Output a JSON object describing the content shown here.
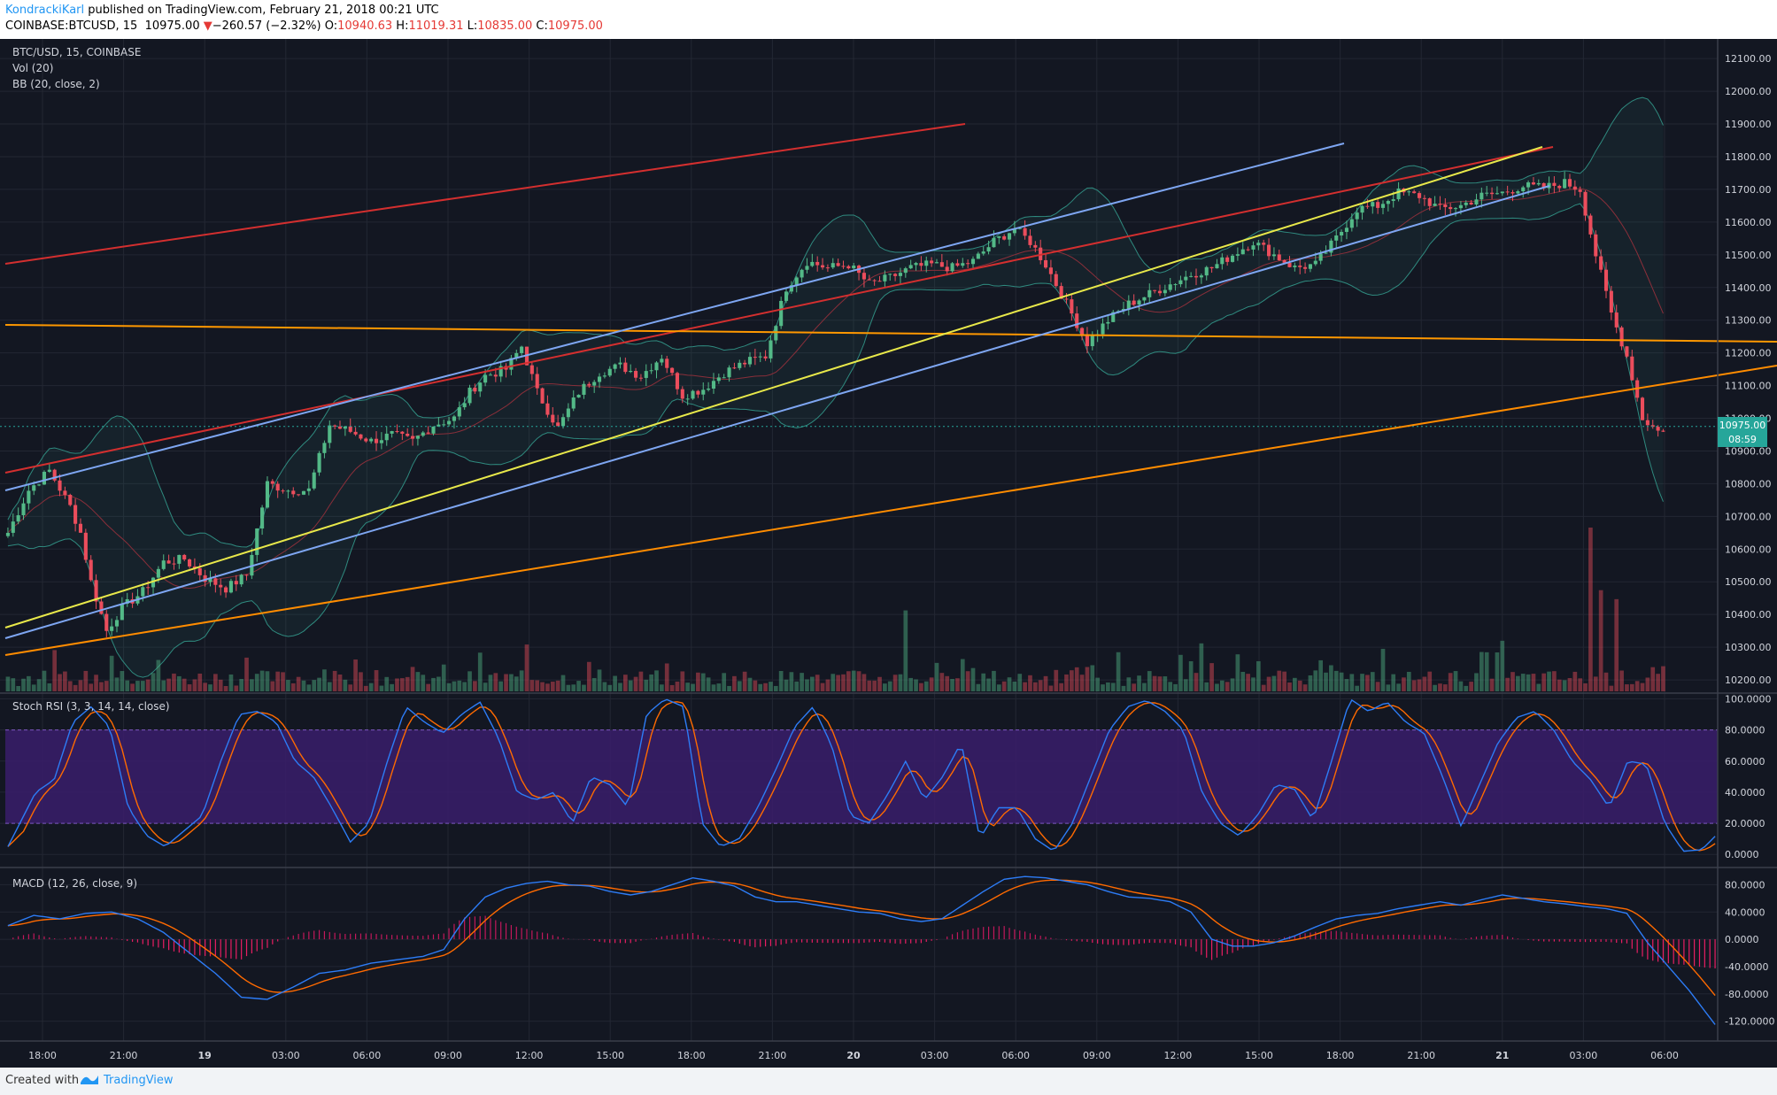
{
  "header": {
    "author": "KondrackiKarl",
    "published": " published on TradingView.com, February 21, 2018 00:21 UTC",
    "symbol": "COINBASE:BTCUSD, 15",
    "last": "10975.00",
    "arrow": "▼",
    "change": "−260.57 (−2.32%)",
    "o_label": "O:",
    "o": "10940.63",
    "h_label": "H:",
    "h": "11019.31",
    "l_label": "L:",
    "l": "10835.00",
    "c_label": "C:",
    "c": "10975.00"
  },
  "legend": {
    "symbol": "BTC/USD, 15, COINBASE",
    "vol": "Vol (20)",
    "bb": "BB (20, close, 2)",
    "stoch": "Stoch RSI (3, 3, 14, 14, close)",
    "macd": "MACD (12, 26, close, 9)"
  },
  "price_badge": {
    "value": "10975.00",
    "timer": "08:59"
  },
  "footer": {
    "created": "Created with",
    "brand": "TradingView"
  },
  "colors": {
    "background": "#131722",
    "grid": "#232733",
    "up": "#53b987",
    "down": "#eb4d5c",
    "bb": "#2f8a7f",
    "stoch_k": "#2d7cf6",
    "stoch_d": "#ff6a00",
    "macd": "#2d7cf6",
    "signal": "#ff6a00",
    "stoch_band": "#3a1d6b"
  },
  "chart_data": {
    "type": "candlestick",
    "x_ticks": [
      "18:00",
      "21:00",
      "19",
      "03:00",
      "06:00",
      "09:00",
      "12:00",
      "15:00",
      "18:00",
      "21:00",
      "20",
      "03:00",
      "06:00",
      "09:00",
      "12:00",
      "15:00",
      "18:00",
      "21:00",
      "21",
      "03:00",
      "06:00"
    ],
    "price_ticks": [
      "12100.00",
      "12000.00",
      "11900.00",
      "11800.00",
      "11700.00",
      "11600.00",
      "11500.00",
      "11400.00",
      "11300.00",
      "11200.00",
      "11100.00",
      "11000.00",
      "10900.00",
      "10800.00",
      "10700.00",
      "10600.00",
      "10500.00",
      "10400.00",
      "10300.00",
      "10200.00"
    ],
    "price_range": [
      10165,
      12160
    ],
    "stoch_ticks": [
      "100.0000",
      "80.0000",
      "60.0000",
      "40.0000",
      "20.0000",
      "0.0000"
    ],
    "stoch_range": [
      -5,
      102
    ],
    "macd_ticks": [
      "80.0000",
      "40.0000",
      "0.0000",
      "-40.0000",
      "-80.0000",
      "-120.0000"
    ],
    "macd_range": [
      -140,
      100
    ],
    "price_anchors": [
      [
        0,
        10650
      ],
      [
        4,
        10780
      ],
      [
        8,
        10840
      ],
      [
        12,
        10730
      ],
      [
        14,
        10650
      ],
      [
        16,
        10500
      ],
      [
        19,
        10350
      ],
      [
        22,
        10420
      ],
      [
        26,
        10470
      ],
      [
        30,
        10560
      ],
      [
        34,
        10570
      ],
      [
        38,
        10510
      ],
      [
        42,
        10480
      ],
      [
        46,
        10520
      ],
      [
        50,
        10800
      ],
      [
        54,
        10780
      ],
      [
        58,
        10780
      ],
      [
        62,
        10980
      ],
      [
        66,
        10960
      ],
      [
        70,
        10930
      ],
      [
        74,
        10950
      ],
      [
        78,
        10930
      ],
      [
        82,
        10980
      ],
      [
        86,
        11000
      ],
      [
        89,
        11080
      ],
      [
        92,
        11130
      ],
      [
        96,
        11150
      ],
      [
        99,
        11220
      ],
      [
        102,
        11080
      ],
      [
        106,
        10970
      ],
      [
        110,
        11080
      ],
      [
        114,
        11140
      ],
      [
        118,
        11160
      ],
      [
        122,
        11130
      ],
      [
        126,
        11190
      ],
      [
        130,
        11070
      ],
      [
        134,
        11090
      ],
      [
        138,
        11140
      ],
      [
        142,
        11170
      ],
      [
        146,
        11190
      ],
      [
        150,
        11400
      ],
      [
        154,
        11480
      ],
      [
        158,
        11460
      ],
      [
        162,
        11470
      ],
      [
        166,
        11410
      ],
      [
        170,
        11430
      ],
      [
        174,
        11460
      ],
      [
        178,
        11470
      ],
      [
        182,
        11460
      ],
      [
        186,
        11480
      ],
      [
        190,
        11540
      ],
      [
        194,
        11580
      ],
      [
        197,
        11540
      ],
      [
        200,
        11470
      ],
      [
        204,
        11350
      ],
      [
        208,
        11230
      ],
      [
        212,
        11300
      ],
      [
        216,
        11350
      ],
      [
        220,
        11380
      ],
      [
        224,
        11410
      ],
      [
        228,
        11440
      ],
      [
        232,
        11460
      ],
      [
        236,
        11500
      ],
      [
        240,
        11540
      ],
      [
        244,
        11500
      ],
      [
        248,
        11460
      ],
      [
        252,
        11470
      ],
      [
        256,
        11550
      ],
      [
        260,
        11640
      ],
      [
        264,
        11650
      ],
      [
        268,
        11690
      ],
      [
        272,
        11680
      ],
      [
        276,
        11640
      ],
      [
        280,
        11650
      ],
      [
        284,
        11680
      ],
      [
        288,
        11690
      ],
      [
        292,
        11710
      ],
      [
        296,
        11705
      ],
      [
        300,
        11720
      ],
      [
        303,
        11700
      ],
      [
        306,
        11500
      ],
      [
        309,
        11320
      ],
      [
        312,
        11190
      ],
      [
        315,
        11000
      ],
      [
        318,
        10960
      ],
      [
        320,
        10975
      ]
    ],
    "volume_spikes": [
      [
        20,
        95
      ],
      [
        46,
        90
      ],
      [
        67,
        85
      ],
      [
        100,
        125
      ],
      [
        173,
        216
      ],
      [
        230,
        128
      ],
      [
        284,
        105
      ],
      [
        288,
        135
      ],
      [
        305,
        437
      ],
      [
        307,
        270
      ],
      [
        310,
        246
      ]
    ],
    "stoch_k_anchors": [
      [
        0,
        5
      ],
      [
        6,
        40
      ],
      [
        10,
        48
      ],
      [
        14,
        85
      ],
      [
        18,
        95
      ],
      [
        22,
        82
      ],
      [
        26,
        30
      ],
      [
        30,
        12
      ],
      [
        34,
        5
      ],
      [
        38,
        15
      ],
      [
        42,
        25
      ],
      [
        46,
        60
      ],
      [
        50,
        90
      ],
      [
        54,
        92
      ],
      [
        58,
        85
      ],
      [
        62,
        60
      ],
      [
        66,
        50
      ],
      [
        70,
        30
      ],
      [
        74,
        8
      ],
      [
        78,
        20
      ],
      [
        82,
        60
      ],
      [
        86,
        95
      ],
      [
        90,
        85
      ],
      [
        94,
        78
      ],
      [
        98,
        90
      ],
      [
        102,
        98
      ],
      [
        106,
        75
      ],
      [
        110,
        40
      ],
      [
        114,
        35
      ],
      [
        118,
        40
      ],
      [
        122,
        20
      ],
      [
        126,
        50
      ],
      [
        130,
        45
      ],
      [
        134,
        30
      ],
      [
        138,
        90
      ],
      [
        142,
        100
      ],
      [
        146,
        95
      ],
      [
        150,
        20
      ],
      [
        154,
        5
      ],
      [
        158,
        10
      ],
      [
        162,
        30
      ],
      [
        166,
        55
      ],
      [
        170,
        82
      ],
      [
        174,
        95
      ],
      [
        178,
        70
      ],
      [
        182,
        25
      ],
      [
        186,
        20
      ],
      [
        190,
        38
      ],
      [
        194,
        60
      ],
      [
        198,
        35
      ],
      [
        202,
        50
      ],
      [
        206,
        72
      ],
      [
        210,
        10
      ],
      [
        214,
        30
      ],
      [
        218,
        30
      ],
      [
        222,
        10
      ],
      [
        226,
        2
      ],
      [
        230,
        20
      ],
      [
        234,
        50
      ],
      [
        238,
        80
      ],
      [
        242,
        95
      ],
      [
        246,
        99
      ],
      [
        250,
        92
      ],
      [
        254,
        80
      ],
      [
        258,
        40
      ],
      [
        262,
        20
      ],
      [
        266,
        12
      ],
      [
        270,
        25
      ],
      [
        274,
        45
      ],
      [
        278,
        42
      ],
      [
        282,
        22
      ],
      [
        286,
        60
      ],
      [
        290,
        100
      ],
      [
        294,
        92
      ],
      [
        298,
        98
      ],
      [
        302,
        85
      ],
      [
        306,
        78
      ],
      [
        310,
        50
      ],
      [
        314,
        18
      ],
      [
        318,
        45
      ],
      [
        322,
        72
      ],
      [
        326,
        88
      ],
      [
        330,
        92
      ],
      [
        334,
        80
      ],
      [
        338,
        60
      ],
      [
        342,
        48
      ],
      [
        346,
        30
      ],
      [
        350,
        60
      ],
      [
        354,
        58
      ],
      [
        358,
        20
      ],
      [
        362,
        2
      ],
      [
        366,
        3
      ],
      [
        370,
        15
      ]
    ],
    "macd_anchors": [
      [
        0,
        20
      ],
      [
        5,
        35
      ],
      [
        10,
        30
      ],
      [
        15,
        38
      ],
      [
        20,
        40
      ],
      [
        25,
        30
      ],
      [
        30,
        10
      ],
      [
        35,
        -20
      ],
      [
        40,
        -50
      ],
      [
        45,
        -85
      ],
      [
        50,
        -88
      ],
      [
        55,
        -70
      ],
      [
        60,
        -50
      ],
      [
        65,
        -45
      ],
      [
        70,
        -35
      ],
      [
        75,
        -30
      ],
      [
        80,
        -25
      ],
      [
        84,
        -15
      ],
      [
        88,
        30
      ],
      [
        92,
        62
      ],
      [
        96,
        75
      ],
      [
        100,
        82
      ],
      [
        104,
        85
      ],
      [
        108,
        80
      ],
      [
        112,
        78
      ],
      [
        116,
        70
      ],
      [
        120,
        65
      ],
      [
        124,
        70
      ],
      [
        128,
        80
      ],
      [
        132,
        90
      ],
      [
        136,
        85
      ],
      [
        140,
        78
      ],
      [
        144,
        62
      ],
      [
        148,
        55
      ],
      [
        152,
        55
      ],
      [
        156,
        50
      ],
      [
        160,
        45
      ],
      [
        164,
        40
      ],
      [
        168,
        38
      ],
      [
        172,
        30
      ],
      [
        176,
        26
      ],
      [
        180,
        30
      ],
      [
        184,
        50
      ],
      [
        188,
        70
      ],
      [
        192,
        88
      ],
      [
        196,
        92
      ],
      [
        200,
        90
      ],
      [
        204,
        85
      ],
      [
        208,
        80
      ],
      [
        212,
        70
      ],
      [
        216,
        62
      ],
      [
        220,
        60
      ],
      [
        224,
        55
      ],
      [
        228,
        40
      ],
      [
        232,
        0
      ],
      [
        236,
        -10
      ],
      [
        240,
        -10
      ],
      [
        244,
        -5
      ],
      [
        248,
        5
      ],
      [
        252,
        18
      ],
      [
        256,
        30
      ],
      [
        260,
        35
      ],
      [
        264,
        38
      ],
      [
        268,
        45
      ],
      [
        272,
        50
      ],
      [
        276,
        55
      ],
      [
        280,
        50
      ],
      [
        284,
        58
      ],
      [
        288,
        65
      ],
      [
        292,
        60
      ],
      [
        296,
        55
      ],
      [
        300,
        52
      ],
      [
        304,
        48
      ],
      [
        308,
        45
      ],
      [
        312,
        38
      ],
      [
        316,
        -5
      ],
      [
        320,
        -40
      ],
      [
        324,
        -75
      ],
      [
        327,
        -105
      ],
      [
        329,
        -125
      ]
    ],
    "indicator_bars": 330,
    "price_bars": 320
  }
}
